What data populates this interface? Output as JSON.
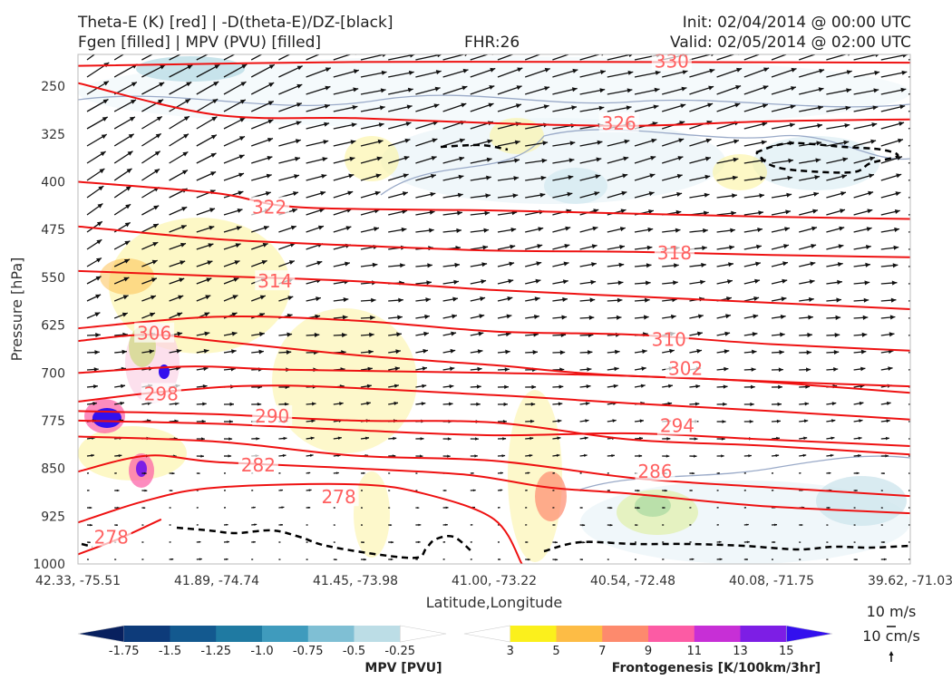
{
  "header": {
    "title_line1": "Theta-E (K) [red] | -D(theta-E)/DZ-[black]",
    "title_line2": "Fgen [filled] | MPV (PVU) [filled]",
    "fhr": "FHR:26",
    "init": "Init: 02/04/2014 @ 00:00 UTC",
    "valid": "Valid: 02/05/2014 @ 02:00 UTC"
  },
  "chart_data": {
    "type": "cross-section",
    "ylabel": "Pressure [hPa]",
    "xlabel": "Latitude,Longitude",
    "yticks": [
      250,
      325,
      400,
      475,
      550,
      625,
      700,
      775,
      850,
      925,
      1000
    ],
    "ylim": [
      1000,
      200
    ],
    "xticks": [
      "42.33, -75.51",
      "41.89, -74.74",
      "41.45, -73.98",
      "41.00, -73.22",
      "40.54, -72.48",
      "40.08, -71.75",
      "39.62, -71.03"
    ],
    "colors": {
      "theta_e": "#ee1111",
      "theta_e_label": "#ff6060",
      "dthetae_dz": "#000000",
      "mpv_outline": "#9aaac8",
      "wind_vectors": "#111111"
    },
    "theta_e_contours": [
      {
        "label": "330",
        "points": [
          [
            0,
            218
          ],
          [
            2,
            212
          ],
          [
            4,
            212
          ],
          [
            6,
            213
          ],
          [
            6.5,
            214
          ]
        ],
        "label_at": [
          4.28,
          211
        ]
      },
      {
        "label": "326",
        "points": [
          [
            0,
            245
          ],
          [
            1,
            295
          ],
          [
            2,
            300
          ],
          [
            3,
            308
          ],
          [
            4,
            312
          ],
          [
            5,
            305
          ],
          [
            6,
            302
          ],
          [
            6.5,
            302
          ]
        ],
        "label_at": [
          3.9,
          308
        ]
      },
      {
        "label": "322",
        "points": [
          [
            0,
            400
          ],
          [
            1,
            418
          ],
          [
            1.6,
            440
          ],
          [
            3,
            445
          ],
          [
            4,
            450
          ],
          [
            5,
            455
          ],
          [
            6.5,
            460
          ]
        ],
        "label_at": [
          1.38,
          440
        ]
      },
      {
        "label": "318",
        "points": [
          [
            0,
            470
          ],
          [
            1,
            490
          ],
          [
            2,
            500
          ],
          [
            3,
            508
          ],
          [
            4,
            510
          ],
          [
            5,
            515
          ],
          [
            6.5,
            520
          ]
        ],
        "label_at": [
          4.3,
          512
        ]
      },
      {
        "label": "314",
        "points": [
          [
            0,
            540
          ],
          [
            1,
            548
          ],
          [
            2,
            556
          ],
          [
            3,
            570
          ],
          [
            4,
            580
          ],
          [
            5,
            590
          ],
          [
            6.5,
            605
          ]
        ],
        "label_at": [
          1.42,
          556
        ]
      },
      {
        "label": "310",
        "points": [
          [
            0,
            630
          ],
          [
            1,
            612
          ],
          [
            2,
            618
          ],
          [
            3,
            635
          ],
          [
            4,
            640
          ],
          [
            5,
            655
          ],
          [
            6.5,
            670
          ]
        ],
        "label_at": [
          4.26,
          648
        ]
      },
      {
        "label": "306",
        "points": [
          [
            0,
            650
          ],
          [
            0.5,
            640
          ],
          [
            1,
            650
          ],
          [
            2,
            672
          ],
          [
            3,
            688
          ],
          [
            4,
            705
          ],
          [
            6.5,
            725
          ]
        ],
        "label_at": [
          0.55,
          638
        ]
      },
      {
        "label": "302",
        "points": [
          [
            0,
            700
          ],
          [
            0.8,
            690
          ],
          [
            1.5,
            695
          ],
          [
            3,
            700
          ],
          [
            4,
            705
          ],
          [
            5,
            715
          ],
          [
            6.5,
            740
          ]
        ],
        "label_at": [
          4.38,
          693
        ]
      },
      {
        "label": "298",
        "points": [
          [
            0,
            745
          ],
          [
            0.7,
            728
          ],
          [
            1.5,
            720
          ],
          [
            3,
            735
          ],
          [
            4,
            748
          ],
          [
            5,
            760
          ],
          [
            6.5,
            780
          ]
        ],
        "label_at": [
          0.6,
          733
        ]
      },
      {
        "label": "294",
        "points": [
          [
            0,
            775
          ],
          [
            1,
            780
          ],
          [
            2,
            790
          ],
          [
            3,
            798
          ],
          [
            4,
            795
          ],
          [
            5,
            805
          ],
          [
            6.5,
            820
          ]
        ],
        "label_at": [
          4.32,
          783
        ]
      },
      {
        "label": "290",
        "points": [
          [
            0,
            760
          ],
          [
            1,
            765
          ],
          [
            2,
            775
          ],
          [
            3,
            778
          ],
          [
            4,
            805
          ],
          [
            5,
            815
          ],
          [
            6.5,
            835
          ]
        ],
        "label_at": [
          1.4,
          768
        ]
      },
      {
        "label": "286",
        "points": [
          [
            0,
            800
          ],
          [
            1,
            808
          ],
          [
            2,
            830
          ],
          [
            3,
            838
          ],
          [
            4,
            865
          ],
          [
            5,
            880
          ],
          [
            6.5,
            900
          ]
        ],
        "label_at": [
          4.16,
          855
        ]
      },
      {
        "label": "282",
        "points": [
          [
            0,
            855
          ],
          [
            0.5,
            830
          ],
          [
            1,
            840
          ],
          [
            2,
            850
          ],
          [
            2.8,
            860
          ],
          [
            3.4,
            880
          ],
          [
            4,
            890
          ],
          [
            5,
            910
          ],
          [
            6.5,
            925
          ]
        ],
        "label_at": [
          1.3,
          845
        ]
      },
      {
        "label": "278",
        "points": [
          [
            0,
            935
          ],
          [
            0.5,
            900
          ],
          [
            1,
            880
          ],
          [
            2,
            875
          ],
          [
            2.5,
            890
          ],
          [
            3,
            930
          ],
          [
            3.2,
            1000
          ]
        ],
        "label_at": [
          1.88,
          895
        ]
      },
      {
        "label": "278",
        "points": [
          [
            0,
            985
          ],
          [
            0.3,
            960
          ],
          [
            0.6,
            930
          ]
        ],
        "label_at": [
          0.24,
          958
        ]
      }
    ],
    "wind_reference": {
      "horizontal": "10 m/s",
      "vertical": "10 cm/s"
    }
  },
  "colorbars": {
    "mpv": {
      "title": "MPV [PVU]",
      "ticks": [
        "-1.75",
        "-1.5",
        "-1.25",
        "-1.0",
        "-0.75",
        "-0.5",
        "-0.25"
      ],
      "colors": [
        "#08205e",
        "#0d3b7a",
        "#13598f",
        "#1f7aa2",
        "#3f9bbd",
        "#7fbfd4",
        "#bcdde6",
        "#ffffff"
      ]
    },
    "fgen": {
      "title": "Frontogenesis [K/100km/3hr]",
      "ticks": [
        "3",
        "5",
        "7",
        "9",
        "11",
        "13",
        "15"
      ],
      "colors": [
        "#ffffff",
        "#fbf01c",
        "#fdbc45",
        "#fd8a6d",
        "#fc5ba4",
        "#c72fd6",
        "#7d1ee5",
        "#3310ee"
      ]
    }
  }
}
